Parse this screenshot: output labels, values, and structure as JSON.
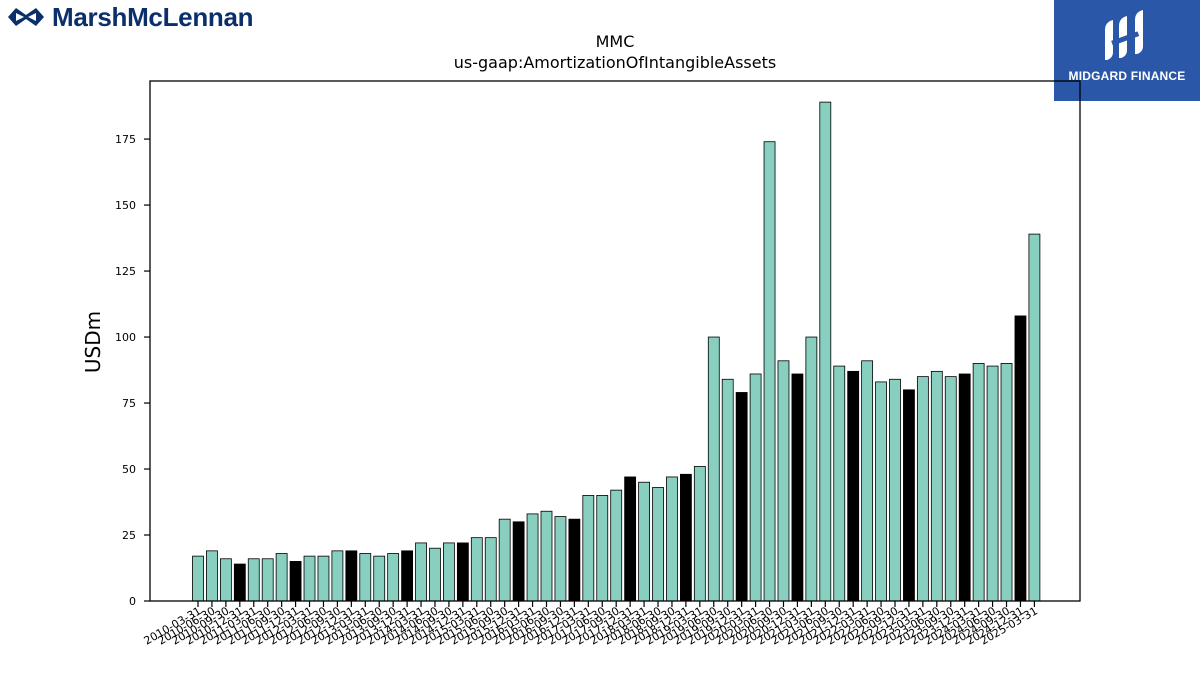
{
  "brand": {
    "name": "MarshMcLennan",
    "badge_text": "MIDGARD FINANCE",
    "brand_color": "#0b2f6b",
    "badge_color": "#2b57a8"
  },
  "chart_data": {
    "type": "bar",
    "title": "MMC",
    "subtitle": "us-gaap:AmortizationOfIntangibleAssets",
    "ylabel": "USDm",
    "xlabel": "",
    "ylim": [
      0,
      197
    ],
    "yticks": [
      0,
      25,
      50,
      75,
      100,
      125,
      150,
      175
    ],
    "grid": false,
    "colors": {
      "quarter": "#88cfc0",
      "annual": "#000000",
      "edge": "#000000"
    },
    "categories": [
      "2010-03-31",
      "2010-06-30",
      "2010-09-30",
      "2010-12-31",
      "2011-03-31",
      "2011-06-30",
      "2011-09-30",
      "2011-12-31",
      "2012-03-31",
      "2012-06-30",
      "2012-09-30",
      "2012-12-31",
      "2013-03-31",
      "2013-06-30",
      "2013-09-30",
      "2013-12-31",
      "2014-03-31",
      "2014-06-30",
      "2014-09-30",
      "2014-12-31",
      "2015-03-31",
      "2015-06-30",
      "2015-09-30",
      "2015-12-31",
      "2016-03-31",
      "2016-06-30",
      "2016-09-30",
      "2016-12-31",
      "2017-03-31",
      "2017-06-30",
      "2017-09-30",
      "2017-12-31",
      "2018-03-31",
      "2018-06-30",
      "2018-09-30",
      "2018-12-31",
      "2019-03-31",
      "2019-06-30",
      "2019-09-30",
      "2019-12-31",
      "2020-03-31",
      "2020-06-30",
      "2020-09-30",
      "2020-12-31",
      "2021-03-31",
      "2021-06-30",
      "2021-09-30",
      "2021-12-31",
      "2022-03-31",
      "2022-06-30",
      "2022-09-30",
      "2022-12-31",
      "2023-03-31",
      "2023-06-30",
      "2023-09-30",
      "2023-12-31",
      "2024-03-31",
      "2024-06-30",
      "2024-09-30",
      "2024-12-31",
      "2025-03-31"
    ],
    "values": [
      17,
      19,
      16,
      14,
      16,
      16,
      18,
      15,
      17,
      17,
      19,
      19,
      18,
      17,
      18,
      19,
      22,
      20,
      22,
      22,
      24,
      24,
      31,
      30,
      33,
      34,
      32,
      31,
      40,
      40,
      42,
      47,
      45,
      43,
      47,
      48,
      51,
      100,
      84,
      79,
      86,
      174,
      91,
      86,
      100,
      189,
      89,
      87,
      91,
      83,
      84,
      80,
      85,
      87,
      85,
      86,
      90,
      89,
      90,
      108,
      139
    ],
    "annual": [
      false,
      false,
      false,
      true,
      false,
      false,
      false,
      true,
      false,
      false,
      false,
      true,
      false,
      false,
      false,
      true,
      false,
      false,
      false,
      true,
      false,
      false,
      false,
      true,
      false,
      false,
      false,
      true,
      false,
      false,
      false,
      true,
      false,
      false,
      false,
      true,
      false,
      false,
      false,
      true,
      false,
      false,
      false,
      true,
      false,
      false,
      false,
      true,
      false,
      false,
      false,
      true,
      false,
      false,
      false,
      true,
      false,
      false,
      false,
      true,
      false
    ]
  }
}
